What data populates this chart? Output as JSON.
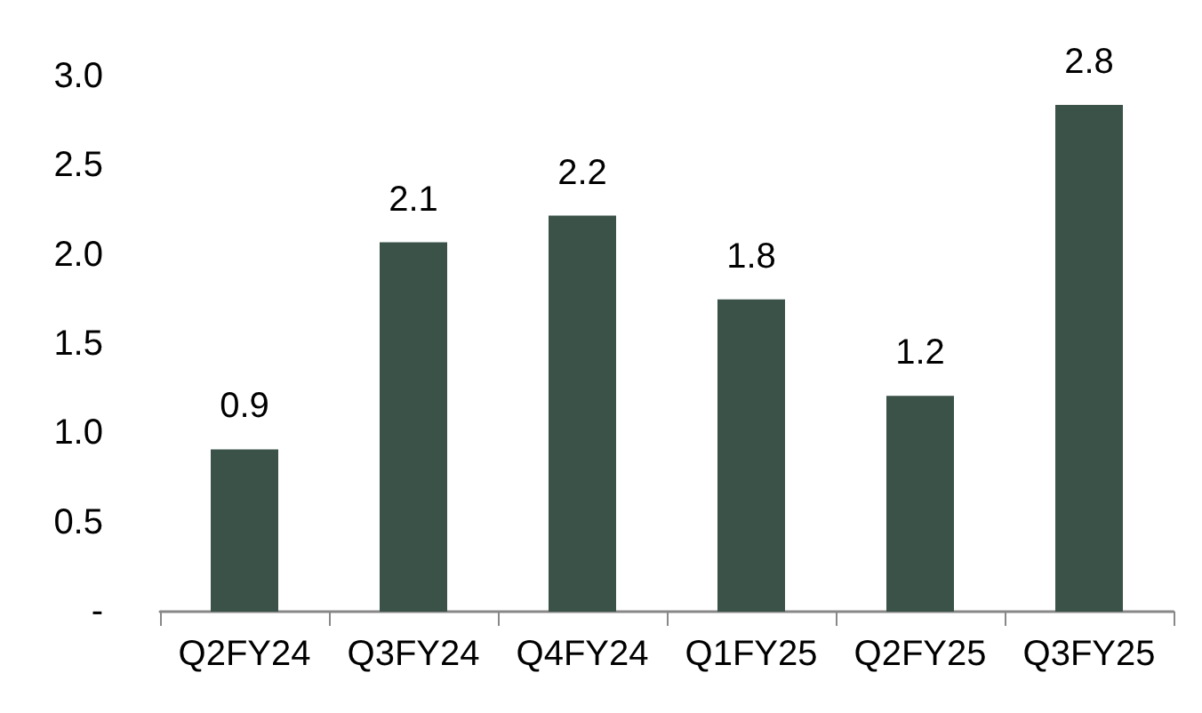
{
  "chart_data": {
    "type": "bar",
    "categories": [
      "Q2FY24",
      "Q3FY24",
      "Q4FY24",
      "Q1FY25",
      "Q2FY25",
      "Q3FY25"
    ],
    "values": [
      0.91,
      2.07,
      2.22,
      1.75,
      1.21,
      2.84
    ],
    "value_labels": [
      "0.9",
      "2.1",
      "2.2",
      "1.8",
      "1.2",
      "2.8"
    ],
    "color": "#3b5249",
    "ylim": [
      0,
      3
    ],
    "yticks": [
      {
        "value": 0,
        "label": "-"
      },
      {
        "value": 0.5,
        "label": "0.5"
      },
      {
        "value": 1,
        "label": "1.0"
      },
      {
        "value": 1.5,
        "label": "1.5"
      },
      {
        "value": 2,
        "label": "2.0"
      },
      {
        "value": 2.5,
        "label": "2.5"
      },
      {
        "value": 3,
        "label": "3.0"
      }
    ],
    "grid": false
  }
}
